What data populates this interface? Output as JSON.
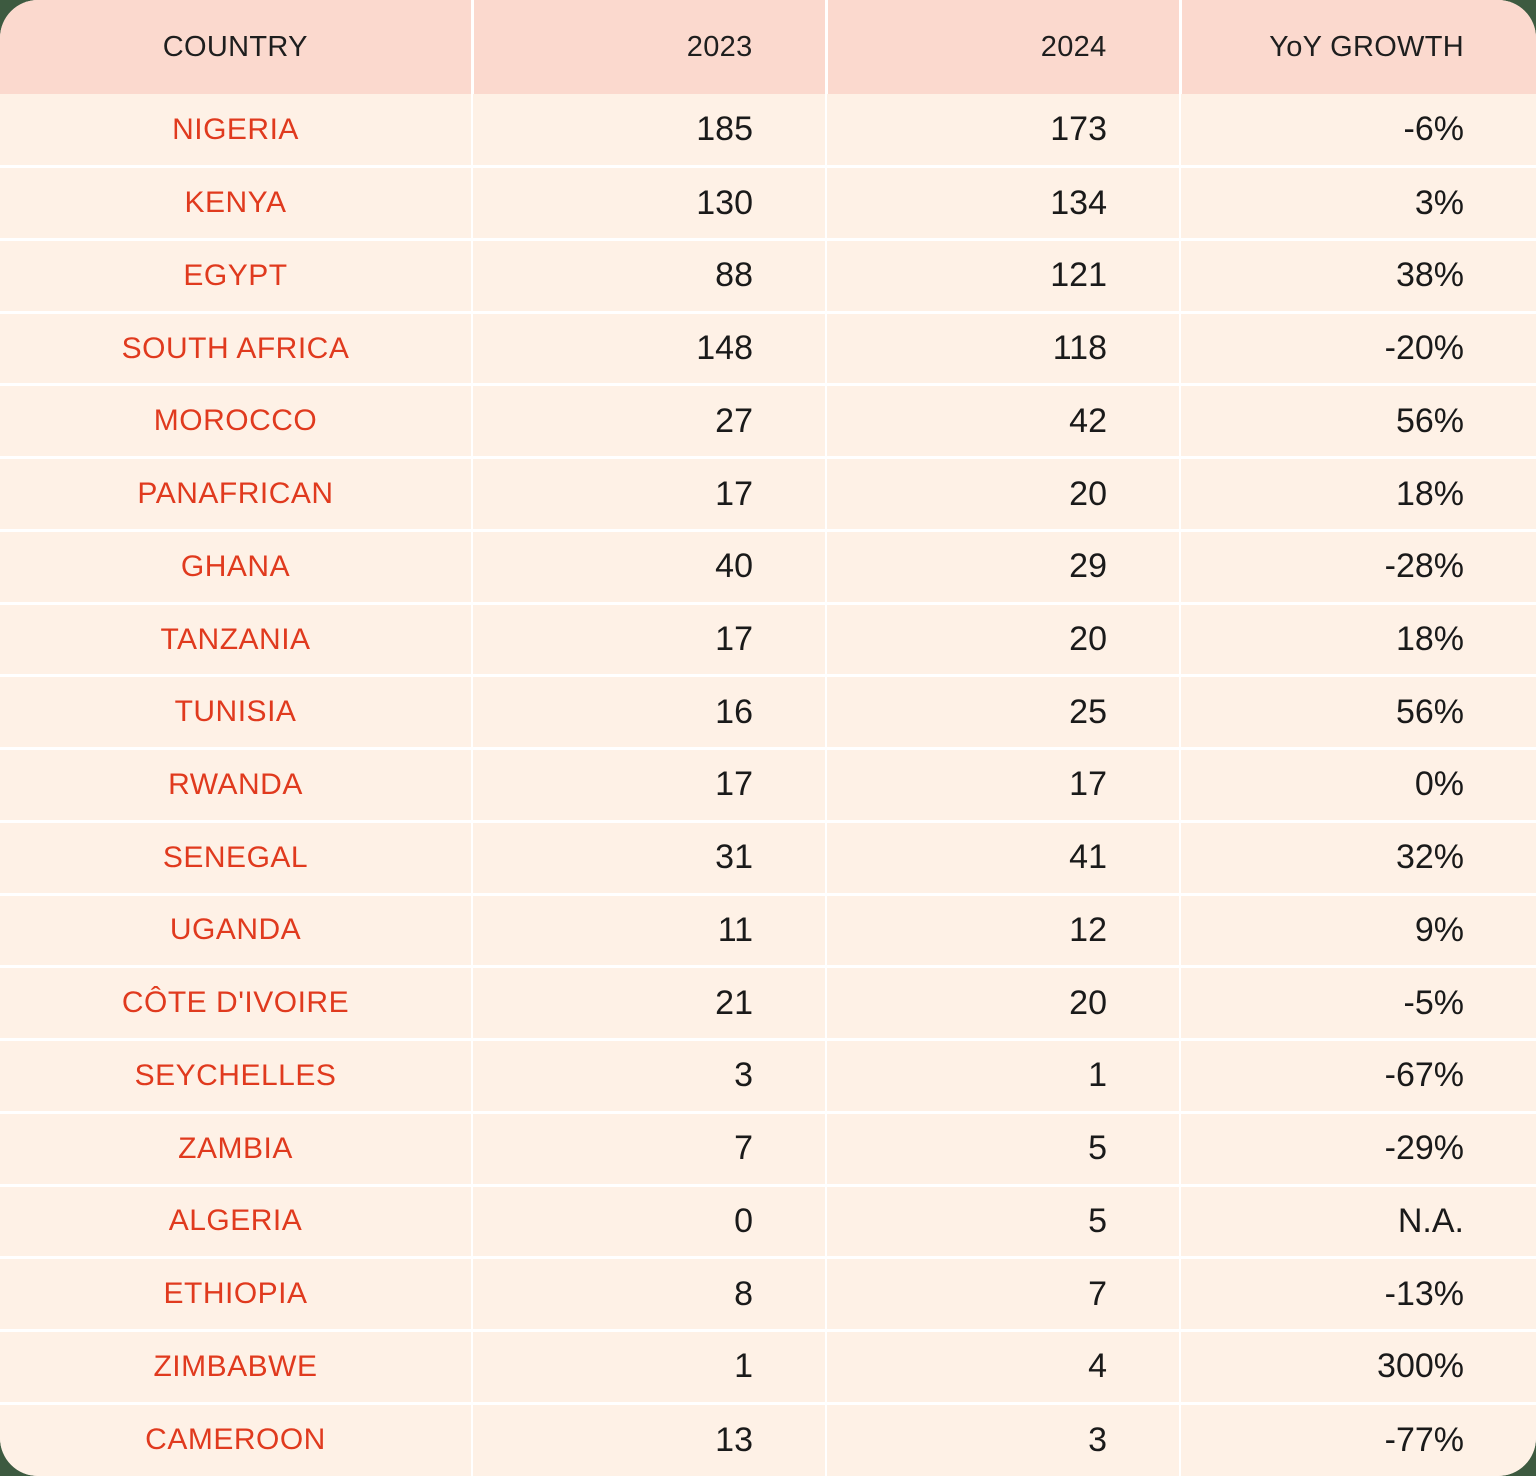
{
  "table": {
    "headers": {
      "country": "COUNTRY",
      "y2023": "2023",
      "y2024": "2024",
      "growth": "YoY GROWTH"
    },
    "rows": [
      {
        "country": "NIGERIA",
        "y2023": "185",
        "y2024": "173",
        "growth": "-6%"
      },
      {
        "country": "KENYA",
        "y2023": "130",
        "y2024": "134",
        "growth": "3%"
      },
      {
        "country": "EGYPT",
        "y2023": "88",
        "y2024": "121",
        "growth": "38%"
      },
      {
        "country": "SOUTH AFRICA",
        "y2023": "148",
        "y2024": "118",
        "growth": "-20%"
      },
      {
        "country": "MOROCCO",
        "y2023": "27",
        "y2024": "42",
        "growth": "56%"
      },
      {
        "country": "PANAFRICAN",
        "y2023": "17",
        "y2024": "20",
        "growth": "18%"
      },
      {
        "country": "GHANA",
        "y2023": "40",
        "y2024": "29",
        "growth": "-28%"
      },
      {
        "country": "TANZANIA",
        "y2023": "17",
        "y2024": "20",
        "growth": "18%"
      },
      {
        "country": "TUNISIA",
        "y2023": "16",
        "y2024": "25",
        "growth": "56%"
      },
      {
        "country": "RWANDA",
        "y2023": "17",
        "y2024": "17",
        "growth": "0%"
      },
      {
        "country": "SENEGAL",
        "y2023": "31",
        "y2024": "41",
        "growth": "32%"
      },
      {
        "country": "UGANDA",
        "y2023": "11",
        "y2024": "12",
        "growth": "9%"
      },
      {
        "country": "CÔTE D'IVOIRE",
        "y2023": "21",
        "y2024": "20",
        "growth": "-5%"
      },
      {
        "country": "SEYCHELLES",
        "y2023": "3",
        "y2024": "1",
        "growth": "-67%"
      },
      {
        "country": "ZAMBIA",
        "y2023": "7",
        "y2024": "5",
        "growth": "-29%"
      },
      {
        "country": "ALGERIA",
        "y2023": "0",
        "y2024": "5",
        "growth": "N.A."
      },
      {
        "country": "ETHIOPIA",
        "y2023": "8",
        "y2024": "7",
        "growth": "-13%"
      },
      {
        "country": "ZIMBABWE",
        "y2023": "1",
        "y2024": "4",
        "growth": "300%"
      },
      {
        "country": "CAMEROON",
        "y2023": "13",
        "y2024": "3",
        "growth": "-77%"
      }
    ]
  },
  "colors": {
    "header_bg": "#fbd9ce",
    "row_bg": "#fef1e6",
    "country_text": "#e03a1e",
    "number_text": "#1a1a1a",
    "outer_bg": "#3d5a40"
  }
}
